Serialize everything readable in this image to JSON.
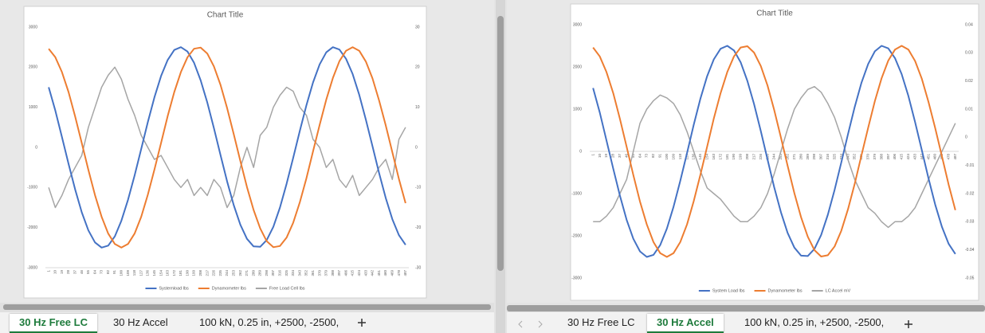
{
  "chart_data": [
    {
      "type": "line",
      "title": "Chart Title",
      "xaxis_position": "bottom",
      "legend": "bottom",
      "categories": [
        1,
        10,
        19,
        28,
        37,
        46,
        55,
        64,
        73,
        82,
        91,
        100,
        109,
        118,
        127,
        136,
        145,
        154,
        163,
        172,
        181,
        190,
        199,
        208,
        217,
        226,
        235,
        244,
        253,
        262,
        271,
        280,
        289,
        298,
        307,
        316,
        325,
        334,
        343,
        352,
        361,
        370,
        379,
        388,
        397,
        406,
        415,
        424,
        433,
        442,
        451,
        460,
        469,
        478,
        487
      ],
      "ylim": [
        -3000,
        3000
      ],
      "yticks": [
        -3000,
        -2000,
        -1000,
        0,
        1000,
        2000,
        3000
      ],
      "y2lim": [
        -30,
        30
      ],
      "y2ticks": [
        -30,
        -20,
        -10,
        0,
        10,
        20,
        30
      ],
      "series": [
        {
          "name": "Systemload lbs",
          "color": "#4472c4",
          "values": [
            1500,
            920,
            260,
            -410,
            -1050,
            -1620,
            -2070,
            -2370,
            -2500,
            -2450,
            -2220,
            -1830,
            -1310,
            -700,
            -40,
            630,
            1250,
            1780,
            2180,
            2430,
            2500,
            2390,
            2110,
            1670,
            1120,
            480,
            -190,
            -850,
            -1440,
            -1930,
            -2280,
            -2470,
            -2480,
            -2310,
            -1980,
            -1500,
            -910,
            -260,
            410,
            1050,
            1620,
            2070,
            2370,
            2500,
            2440,
            2210,
            1830,
            1310,
            690,
            30,
            -640,
            -1260,
            -1790,
            -2190,
            -2430
          ]
        },
        {
          "name": "Dynamometer lbs",
          "color": "#ed7d31",
          "values": [
            2460,
            2250,
            1880,
            1380,
            770,
            110,
            -560,
            -1190,
            -1730,
            -2150,
            -2410,
            -2500,
            -2410,
            -2150,
            -1730,
            -1180,
            -550,
            110,
            780,
            1380,
            1880,
            2250,
            2460,
            2490,
            2340,
            2020,
            1560,
            980,
            330,
            -340,
            -990,
            -1560,
            -2020,
            -2340,
            -2490,
            -2460,
            -2250,
            -1880,
            -1370,
            -770,
            -100,
            560,
            1190,
            1730,
            2150,
            2410,
            2500,
            2410,
            2140,
            1720,
            1170,
            550,
            -120,
            -790,
            -1390
          ]
        },
        {
          "name": "Free Load Cell lbs",
          "color": "#a5a5a5",
          "axis": "y2",
          "values": [
            -10,
            -15,
            -12,
            -8,
            -5,
            -2,
            5,
            10,
            15,
            18,
            20,
            17,
            12,
            8,
            3,
            0,
            -3,
            -2,
            -5,
            -8,
            -10,
            -8,
            -12,
            -10,
            -12,
            -8,
            -10,
            -15,
            -12,
            -5,
            0,
            -5,
            3,
            5,
            10,
            13,
            15,
            14,
            10,
            8,
            2,
            0,
            -5,
            -3,
            -8,
            -10,
            -7,
            -12,
            -10,
            -8,
            -5,
            -3,
            -8,
            2,
            5
          ]
        }
      ]
    },
    {
      "type": "line",
      "title": "Chart Title",
      "xaxis_position": "zero",
      "legend": "bottom",
      "categories": [
        1,
        10,
        19,
        28,
        37,
        46,
        55,
        64,
        73,
        82,
        91,
        100,
        109,
        118,
        127,
        136,
        145,
        154,
        163,
        172,
        181,
        190,
        199,
        208,
        217,
        226,
        235,
        244,
        253,
        262,
        271,
        280,
        289,
        298,
        307,
        316,
        325,
        334,
        343,
        352,
        361,
        370,
        379,
        388,
        397,
        406,
        415,
        424,
        433,
        442,
        451,
        460,
        469,
        478,
        487
      ],
      "ylim": [
        -3000,
        3000
      ],
      "yticks": [
        -3000,
        -2000,
        -1000,
        0,
        1000,
        2000,
        3000
      ],
      "y2lim": [
        -0.05,
        0.04
      ],
      "y2ticks": [
        -0.05,
        -0.04,
        -0.03,
        -0.02,
        -0.01,
        0,
        0.01,
        0.02,
        0.03,
        0.04
      ],
      "series": [
        {
          "name": "System Load lbs",
          "color": "#4472c4",
          "values": [
            1500,
            920,
            260,
            -410,
            -1050,
            -1620,
            -2070,
            -2370,
            -2500,
            -2450,
            -2220,
            -1830,
            -1310,
            -700,
            -40,
            630,
            1250,
            1780,
            2180,
            2430,
            2500,
            2390,
            2110,
            1670,
            1120,
            480,
            -190,
            -850,
            -1440,
            -1930,
            -2280,
            -2470,
            -2480,
            -2310,
            -1980,
            -1500,
            -910,
            -260,
            410,
            1050,
            1620,
            2070,
            2370,
            2500,
            2440,
            2210,
            1830,
            1310,
            690,
            30,
            -640,
            -1260,
            -1790,
            -2190,
            -2430
          ]
        },
        {
          "name": "Dynamometer lbs",
          "color": "#ed7d31",
          "values": [
            2460,
            2250,
            1880,
            1380,
            770,
            110,
            -560,
            -1190,
            -1730,
            -2150,
            -2410,
            -2500,
            -2410,
            -2150,
            -1730,
            -1180,
            -550,
            110,
            780,
            1380,
            1880,
            2250,
            2460,
            2490,
            2340,
            2020,
            1560,
            980,
            330,
            -340,
            -990,
            -1560,
            -2020,
            -2340,
            -2490,
            -2460,
            -2250,
            -1880,
            -1370,
            -770,
            -100,
            560,
            1190,
            1730,
            2150,
            2410,
            2500,
            2410,
            2140,
            1720,
            1170,
            550,
            -120,
            -790,
            -1390
          ]
        },
        {
          "name": "LC Accel mV",
          "color": "#a5a5a5",
          "axis": "y2",
          "values": [
            -0.03,
            -0.03,
            -0.028,
            -0.025,
            -0.02,
            -0.015,
            -0.005,
            0.005,
            0.01,
            0.013,
            0.015,
            0.014,
            0.012,
            0.008,
            0.002,
            -0.005,
            -0.012,
            -0.018,
            -0.02,
            -0.022,
            -0.025,
            -0.028,
            -0.03,
            -0.03,
            -0.028,
            -0.025,
            -0.02,
            -0.013,
            -0.005,
            0.003,
            0.01,
            0.014,
            0.017,
            0.018,
            0.016,
            0.012,
            0.007,
            0,
            -0.008,
            -0.015,
            -0.02,
            -0.025,
            -0.027,
            -0.03,
            -0.032,
            -0.03,
            -0.03,
            -0.028,
            -0.025,
            -0.02,
            -0.015,
            -0.01,
            -0.005,
            0,
            0.005
          ]
        }
      ]
    }
  ],
  "tabs": [
    {
      "active": 0,
      "items": [
        "30 Hz Free LC",
        "30 Hz Accel",
        "100 kN, 0.25 in, +2500, -2500,"
      ]
    },
    {
      "active": 1,
      "items": [
        "30 Hz Free LC",
        "30 Hz Accel",
        "100 kN, 0.25 in, +2500, -2500,"
      ]
    }
  ]
}
